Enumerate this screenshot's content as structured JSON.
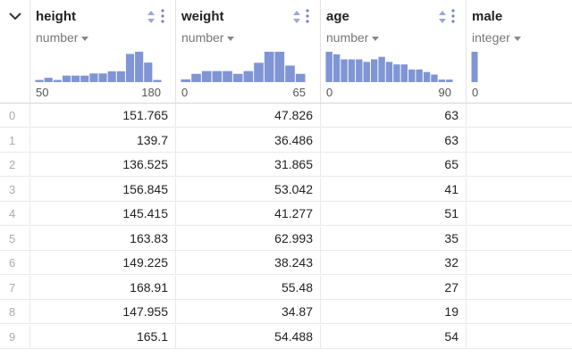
{
  "columns": [
    {
      "name": "height",
      "type": "number",
      "min": "50",
      "max": "180",
      "hist": [
        1,
        2,
        1,
        3,
        3,
        3,
        4,
        4,
        5,
        5,
        13,
        14,
        9,
        1
      ]
    },
    {
      "name": "weight",
      "type": "number",
      "min": "0",
      "max": "65",
      "hist": [
        1,
        3,
        4,
        4,
        4,
        3,
        4,
        7,
        11,
        11,
        6,
        3
      ]
    },
    {
      "name": "age",
      "type": "number",
      "min": "0",
      "max": "90",
      "hist": [
        12,
        11,
        9,
        9,
        9,
        8,
        9,
        10,
        8,
        7,
        7,
        5,
        5,
        4,
        3,
        1,
        1
      ]
    },
    {
      "name": "male",
      "type": "integer",
      "min": "0",
      "max": "",
      "hist": [
        12
      ]
    }
  ],
  "rows": [
    {
      "index": "0",
      "height": "151.765",
      "weight": "47.826",
      "age": "63"
    },
    {
      "index": "1",
      "height": "139.7",
      "weight": "36.486",
      "age": "63"
    },
    {
      "index": "2",
      "height": "136.525",
      "weight": "31.865",
      "age": "65"
    },
    {
      "index": "3",
      "height": "156.845",
      "weight": "53.042",
      "age": "41"
    },
    {
      "index": "4",
      "height": "145.415",
      "weight": "41.277",
      "age": "51"
    },
    {
      "index": "5",
      "height": "163.83",
      "weight": "62.993",
      "age": "35"
    },
    {
      "index": "6",
      "height": "149.225",
      "weight": "38.243",
      "age": "32"
    },
    {
      "index": "7",
      "height": "168.91",
      "weight": "55.48",
      "age": "27"
    },
    {
      "index": "8",
      "height": "147.955",
      "weight": "34.87",
      "age": "19"
    },
    {
      "index": "9",
      "height": "165.1",
      "weight": "54.488",
      "age": "54"
    }
  ],
  "colors": {
    "bar": "#8095d4",
    "sort": "#9aa8d8",
    "more": "#6f85c9"
  }
}
